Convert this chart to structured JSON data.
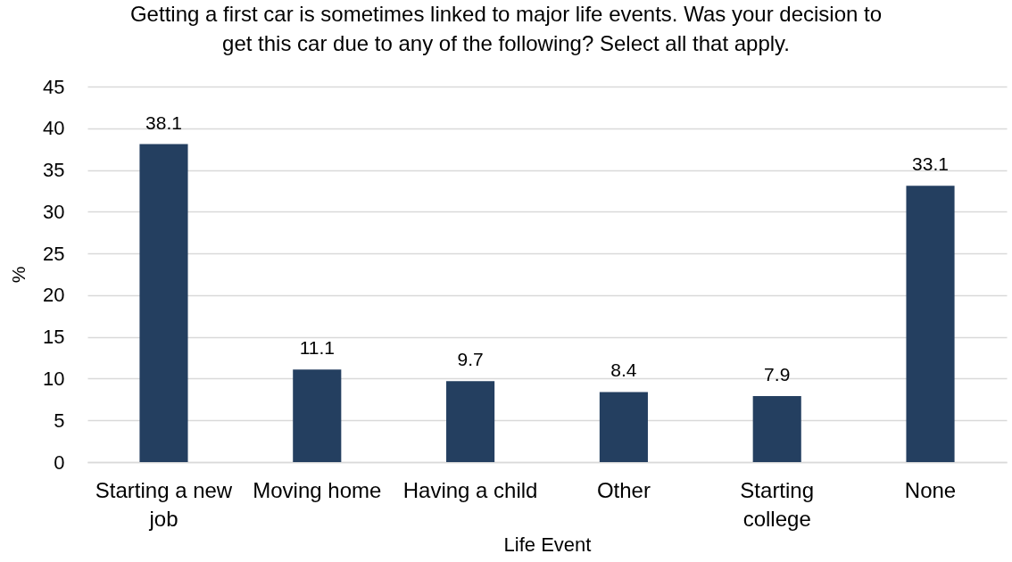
{
  "chart_data": {
    "type": "bar",
    "title": "Getting a first car is sometimes linked to major life events. Was your decision to get this car due to any of the following? Select all that apply.",
    "xlabel": "Life Event",
    "ylabel": "%",
    "categories": [
      "Starting a new job",
      "Moving home",
      "Having a child",
      "Other",
      "Starting college",
      "None"
    ],
    "values": [
      38.1,
      11.1,
      9.7,
      8.4,
      7.9,
      33.1
    ],
    "color": "#243f60",
    "ylim": [
      0,
      45
    ],
    "yticks": [
      0,
      5,
      10,
      15,
      20,
      25,
      30,
      35,
      40,
      45
    ],
    "grid": "y",
    "data_labels": true
  }
}
